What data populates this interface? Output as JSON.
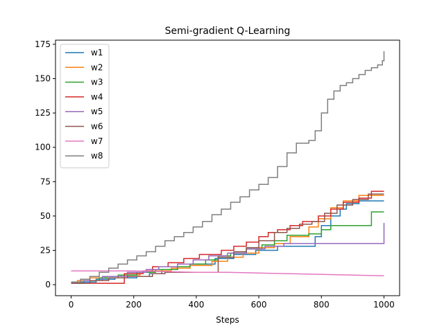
{
  "chart_data": {
    "type": "line",
    "title": "Semi-gradient Q-Learning",
    "xlabel": "Steps",
    "ylabel": "",
    "xlim": [
      -50,
      1050
    ],
    "ylim": [
      -8,
      178
    ],
    "xticks": [
      0,
      200,
      400,
      600,
      800,
      1000
    ],
    "yticks": [
      0,
      25,
      50,
      75,
      100,
      125,
      150,
      175
    ],
    "grid": false,
    "legend_position": "top-left",
    "series": [
      {
        "name": "w1",
        "color": "#1f77b4",
        "step": true,
        "x": [
          0,
          30,
          80,
          140,
          210,
          250,
          290,
          340,
          380,
          460,
          520,
          590,
          660,
          760,
          780,
          800,
          830,
          860,
          880,
          920,
          1000
        ],
        "y": [
          1,
          2,
          4,
          5,
          6,
          8,
          11,
          13,
          15,
          19,
          22,
          25,
          28,
          28,
          35,
          43,
          50,
          55,
          59,
          61,
          61
        ]
      },
      {
        "name": "w2",
        "color": "#ff7f0e",
        "step": true,
        "x": [
          0,
          20,
          60,
          110,
          160,
          220,
          260,
          320,
          380,
          450,
          500,
          550,
          600,
          650,
          700,
          760,
          790,
          830,
          870,
          920,
          1000
        ],
        "y": [
          1,
          3,
          5,
          6,
          7,
          9,
          10,
          12,
          14,
          17,
          20,
          23,
          27,
          30,
          35,
          42,
          48,
          56,
          61,
          65,
          65
        ]
      },
      {
        "name": "w3",
        "color": "#2ca02c",
        "step": true,
        "x": [
          0,
          40,
          90,
          150,
          210,
          270,
          340,
          380,
          430,
          470,
          510,
          560,
          610,
          650,
          690,
          760,
          800,
          830,
          880,
          935,
          960,
          1000
        ],
        "y": [
          1,
          3,
          5,
          7,
          9,
          11,
          13,
          15,
          18,
          21,
          23,
          26,
          29,
          32,
          36,
          37,
          40,
          43,
          43,
          43,
          53,
          53
        ]
      },
      {
        "name": "w4",
        "color": "#d62728",
        "step": true,
        "x": [
          0,
          150,
          170,
          230,
          260,
          310,
          360,
          410,
          440,
          480,
          520,
          560,
          600,
          630,
          660,
          700,
          740,
          790,
          830,
          870,
          920,
          960,
          1000
        ],
        "y": [
          1,
          1,
          8,
          10,
          13,
          16,
          19,
          22,
          22,
          25,
          28,
          31,
          35,
          38,
          40,
          43,
          46,
          50,
          55,
          60,
          63,
          68,
          68
        ]
      },
      {
        "name": "w5",
        "color": "#9467bd",
        "step": true,
        "x": [
          0,
          40,
          100,
          180,
          240,
          280,
          340,
          390,
          440,
          500,
          560,
          620,
          680,
          720,
          990,
          1000
        ],
        "y": [
          1,
          3,
          6,
          9,
          11,
          13,
          15,
          18,
          21,
          23,
          26,
          28,
          30,
          30,
          30,
          45
        ]
      },
      {
        "name": "w6",
        "color": "#8c564b",
        "step": true,
        "x": [
          0,
          60,
          120,
          180,
          260,
          300,
          360,
          440,
          470,
          520,
          560,
          600,
          650,
          690,
          730,
          770,
          810,
          850,
          900,
          950,
          1000
        ],
        "y": [
          1,
          3,
          5,
          6,
          8,
          9,
          9,
          9,
          20,
          24,
          27,
          32,
          38,
          41,
          44,
          46,
          52,
          58,
          62,
          66,
          66
        ]
      },
      {
        "name": "w7",
        "color": "#e377c2",
        "step": false,
        "x": [
          0,
          100,
          200,
          300,
          400,
          500,
          600,
          700,
          800,
          900,
          1000
        ],
        "y": [
          10,
          10,
          10,
          9.5,
          9,
          9,
          8.5,
          8,
          7.5,
          7,
          6.5
        ]
      },
      {
        "name": "w8",
        "color": "#7f7f7f",
        "step": true,
        "x": [
          0,
          30,
          60,
          90,
          120,
          150,
          180,
          210,
          240,
          270,
          300,
          330,
          360,
          390,
          420,
          450,
          480,
          510,
          540,
          570,
          600,
          630,
          660,
          690,
          720,
          740,
          760,
          780,
          800,
          820,
          840,
          860,
          880,
          900,
          920,
          940,
          960,
          980,
          995,
          1000
        ],
        "y": [
          2,
          4,
          6,
          9,
          12,
          15,
          18,
          21,
          24,
          28,
          32,
          35,
          38,
          42,
          46,
          51,
          55,
          60,
          64,
          69,
          73,
          78,
          86,
          96,
          103,
          103,
          105,
          112,
          125,
          135,
          141,
          145,
          147,
          150,
          153,
          156,
          158,
          160,
          163,
          170
        ]
      }
    ]
  }
}
